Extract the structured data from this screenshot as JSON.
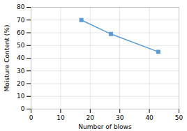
{
  "chart_data": {
    "type": "line",
    "x": [
      17,
      27,
      43
    ],
    "values": [
      70,
      59,
      45
    ],
    "color": "#5b9bd5",
    "marker": "square",
    "xlabel": "Number of blows",
    "ylabel": "Moisture Content (%)",
    "xlim": [
      0,
      50
    ],
    "ylim": [
      0,
      80
    ],
    "xticks": [
      0,
      10,
      20,
      30,
      40,
      50
    ],
    "yticks": [
      0,
      10,
      20,
      30,
      40,
      50,
      60,
      70,
      80
    ],
    "grid": true
  }
}
